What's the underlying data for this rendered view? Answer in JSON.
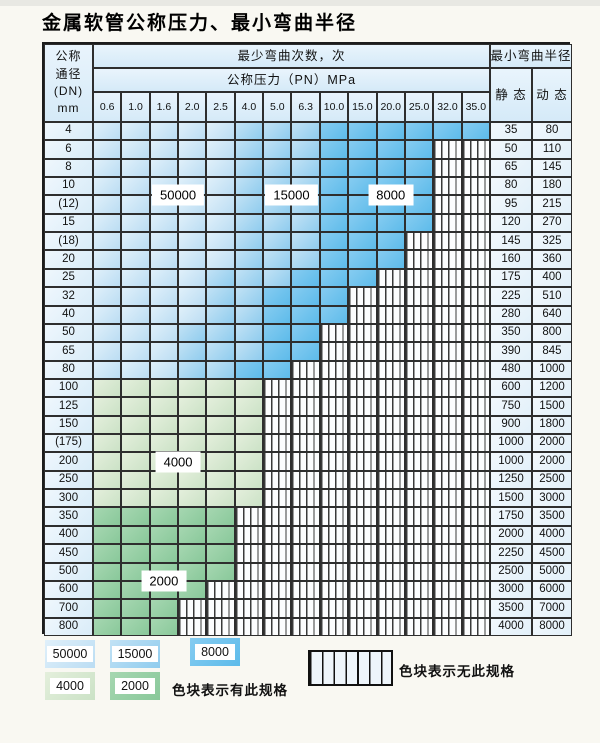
{
  "title": "金属软管公称压力、最小弯曲半径",
  "colors": {
    "cycles_50000": "#bbddf3",
    "cycles_15000": "#8fccee",
    "cycles_8000": "#5dbbea",
    "cycles_4000": "#cbe2c6",
    "cycles_2000": "#89c89a",
    "grid": "#2e2e2e",
    "header_bg": "#d5eaf8"
  },
  "table": {
    "header": {
      "dn_label_lines": [
        "公称",
        "通径",
        "(DN)",
        "mm"
      ],
      "cycles_header": "最少弯曲次数，次",
      "pressure_header": "公称压力（PN）MPa",
      "pressures": [
        "0.6",
        "1.0",
        "1.6",
        "2.0",
        "2.5",
        "4.0",
        "5.0",
        "6.3",
        "10.0",
        "15.0",
        "20.0",
        "25.0",
        "32.0",
        "35.0"
      ],
      "radius_header": "最小弯曲半径",
      "static_label": "静 态",
      "dynamic_label": "动 态"
    },
    "cell_zone_legend": "L=50000 cycles, M=15000 cycles, D=8000 cycles, g=4000 cycles, G=2000 cycles, x=not available (striped)",
    "rows": [
      {
        "dn": "4",
        "cells": "LLLLLMMMDDDDDD",
        "static": "35",
        "dynamic": "80"
      },
      {
        "dn": "6",
        "cells": "LLLLLMMMDDDDxx",
        "static": "50",
        "dynamic": "110"
      },
      {
        "dn": "8",
        "cells": "LLLLLMMMDDDDxx",
        "static": "65",
        "dynamic": "145"
      },
      {
        "dn": "10",
        "cells": "LLLLLMMMDDDDxx",
        "static": "80",
        "dynamic": "180"
      },
      {
        "dn": "(12)",
        "cells": "LLLLLMMMDDDDxx",
        "static": "95",
        "dynamic": "215"
      },
      {
        "dn": "15",
        "cells": "LLLLLMMMDDDDxx",
        "static": "120",
        "dynamic": "270"
      },
      {
        "dn": "(18)",
        "cells": "LLLLLMMMDDDxxx",
        "static": "145",
        "dynamic": "325"
      },
      {
        "dn": "20",
        "cells": "LLLLLMMMDDDxxx",
        "static": "160",
        "dynamic": "360"
      },
      {
        "dn": "25",
        "cells": "LLLLMMMDDDxxxx",
        "static": "175",
        "dynamic": "400"
      },
      {
        "dn": "32",
        "cells": "LLLLMMDDDxxxxx",
        "static": "225",
        "dynamic": "510"
      },
      {
        "dn": "40",
        "cells": "LLLLMMDDDxxxxx",
        "static": "280",
        "dynamic": "640"
      },
      {
        "dn": "50",
        "cells": "LLLMMMDDxxxxxx",
        "static": "350",
        "dynamic": "800"
      },
      {
        "dn": "65",
        "cells": "LLLMMMDDxxxxxx",
        "static": "390",
        "dynamic": "845"
      },
      {
        "dn": "80",
        "cells": "LLLMMDDxxxxxxx",
        "static": "480",
        "dynamic": "1000"
      },
      {
        "dn": "100",
        "cells": "ggggggxxxxxxxx",
        "static": "600",
        "dynamic": "1200"
      },
      {
        "dn": "125",
        "cells": "ggggggxxxxxxxx",
        "static": "750",
        "dynamic": "1500"
      },
      {
        "dn": "150",
        "cells": "ggggggxxxxxxxx",
        "static": "900",
        "dynamic": "1800"
      },
      {
        "dn": "(175)",
        "cells": "ggggggxxxxxxxx",
        "static": "1000",
        "dynamic": "2000"
      },
      {
        "dn": "200",
        "cells": "ggggggxxxxxxxx",
        "static": "1000",
        "dynamic": "2000"
      },
      {
        "dn": "250",
        "cells": "ggggggxxxxxxxx",
        "static": "1250",
        "dynamic": "2500"
      },
      {
        "dn": "300",
        "cells": "ggggggxxxxxxxx",
        "static": "1500",
        "dynamic": "3000"
      },
      {
        "dn": "350",
        "cells": "GGGGGxxxxxxxxx",
        "static": "1750",
        "dynamic": "3500"
      },
      {
        "dn": "400",
        "cells": "GGGGGxxxxxxxxx",
        "static": "2000",
        "dynamic": "4000"
      },
      {
        "dn": "450",
        "cells": "GGGGGxxxxxxxxx",
        "static": "2250",
        "dynamic": "4500"
      },
      {
        "dn": "500",
        "cells": "GGGGGxxxxxxxxx",
        "static": "2500",
        "dynamic": "5000"
      },
      {
        "dn": "600",
        "cells": "GGGGxxxxxxxxxx",
        "static": "3000",
        "dynamic": "6000"
      },
      {
        "dn": "700",
        "cells": "GGGxxxxxxxxxxx",
        "static": "3500",
        "dynamic": "7000"
      },
      {
        "dn": "800",
        "cells": "GGGxxxxxxxxxxx",
        "static": "4000",
        "dynamic": "8000"
      }
    ],
    "zone_labels": [
      {
        "text": "50000",
        "col_from": 2,
        "col_to": 3,
        "row_index": 3,
        "anchor": "border"
      },
      {
        "text": "15000",
        "col_from": 6,
        "col_to": 7,
        "row_index": 3,
        "anchor": "border"
      },
      {
        "text": "8000",
        "col_from": 9,
        "col_to": 11,
        "row_index": 3,
        "anchor": "border"
      },
      {
        "text": "4000",
        "col_from": 2,
        "col_to": 3,
        "row_index": 18,
        "anchor": "middle"
      },
      {
        "text": "2000",
        "col_from": 1,
        "col_to": 3,
        "row_index": 24,
        "anchor": "border"
      }
    ]
  },
  "legend": {
    "items": [
      {
        "label": "50000",
        "tone": "L"
      },
      {
        "label": "15000",
        "tone": "M"
      },
      {
        "label": "8000",
        "tone": "D"
      },
      {
        "label": "4000",
        "tone": "g"
      },
      {
        "label": "2000",
        "tone": "G"
      }
    ],
    "has_spec_text": "色块表示有此规格",
    "no_spec_text": "色块表示无此规格"
  }
}
